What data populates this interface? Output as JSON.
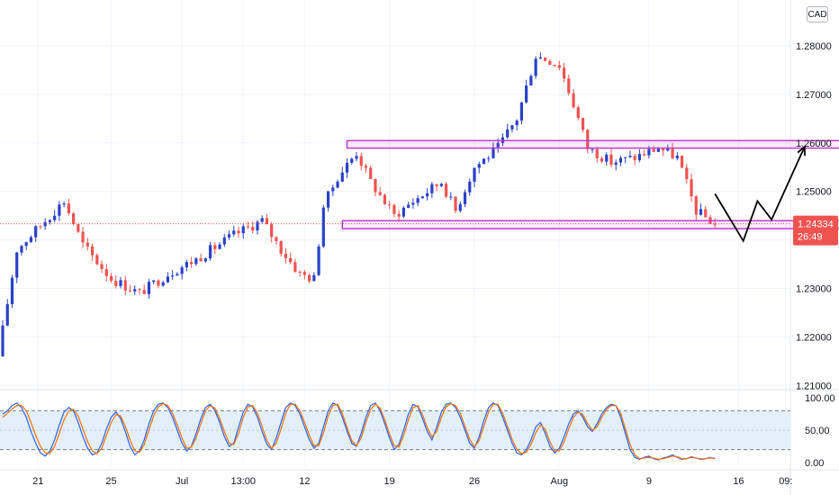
{
  "currency_badge": "CAD",
  "colors": {
    "up": "#2a41c8",
    "down": "#ef5350",
    "zone": "#c03ccf",
    "price_line": "#ef5350",
    "stoch_k": "#2962ff",
    "stoch_d": "#ff6d00",
    "stoch_band": "#e3f0fc",
    "axis_text": "#131722"
  },
  "current_price": {
    "value": 1.24334,
    "label": "1.24334",
    "countdown": "26:49"
  },
  "chart_data": [
    {
      "type": "candlestick",
      "title": "",
      "y_ticks": [
        "1.28000",
        "1.27000",
        "1.26000",
        "1.25000",
        "1.23000",
        "1.22000",
        "1.21000"
      ],
      "x_ticks": [
        "21",
        "25",
        "Jul",
        "13:00",
        "12",
        "19",
        "26",
        "Aug",
        "9",
        "16",
        "09:"
      ],
      "ylim": [
        1.206,
        1.292
      ],
      "candles_count": 152,
      "anchors": [
        [
          0,
          1.216
        ],
        [
          4,
          1.238
        ],
        [
          10,
          1.244
        ],
        [
          14,
          1.248
        ],
        [
          18,
          1.239
        ],
        [
          24,
          1.232
        ],
        [
          30,
          1.229
        ],
        [
          36,
          1.233
        ],
        [
          42,
          1.236
        ],
        [
          50,
          1.241
        ],
        [
          56,
          1.244
        ],
        [
          60,
          1.238
        ],
        [
          64,
          1.233
        ],
        [
          67,
          1.232
        ],
        [
          69,
          1.247
        ],
        [
          72,
          1.253
        ],
        [
          76,
          1.258
        ],
        [
          79,
          1.252
        ],
        [
          84,
          1.245
        ],
        [
          88,
          1.248
        ],
        [
          94,
          1.252
        ],
        [
          97,
          1.246
        ],
        [
          101,
          1.255
        ],
        [
          106,
          1.259
        ],
        [
          110,
          1.265
        ],
        [
          114,
          1.278
        ],
        [
          117,
          1.277
        ],
        [
          119,
          1.276
        ],
        [
          122,
          1.268
        ],
        [
          125,
          1.259
        ],
        [
          130,
          1.256
        ],
        [
          135,
          1.257
        ],
        [
          140,
          1.259
        ],
        [
          144,
          1.257
        ],
        [
          148,
          1.246
        ],
        [
          152,
          1.2433
        ]
      ],
      "zones": [
        {
          "name": "resistance",
          "y_low": 1.2593,
          "y_high": 1.2601,
          "x_from": 73,
          "x_to": 192
        },
        {
          "name": "support",
          "y_low": 1.2427,
          "y_high": 1.2436,
          "x_from": 72,
          "x_to": 180
        }
      ],
      "projection": [
        [
          151,
          1.2495
        ],
        [
          157,
          1.2398
        ],
        [
          160,
          1.248
        ],
        [
          163,
          1.2442
        ],
        [
          170,
          1.2592
        ]
      ]
    },
    {
      "type": "line",
      "title": "",
      "ylim": [
        0,
        100
      ],
      "y_ticks": [
        "100.00",
        "50.00",
        "0.00"
      ],
      "bands": [
        20,
        80
      ],
      "series": [
        {
          "role": "%K",
          "values": [
            75,
            80,
            88,
            92,
            85,
            70,
            48,
            30,
            15,
            10,
            18,
            35,
            58,
            78,
            85,
            80,
            62,
            40,
            22,
            12,
            15,
            30,
            52,
            70,
            78,
            68,
            48,
            25,
            12,
            18,
            35,
            60,
            80,
            90,
            92,
            85,
            70,
            50,
            30,
            18,
            25,
            45,
            68,
            85,
            90,
            80,
            62,
            40,
            25,
            30,
            55,
            78,
            90,
            86,
            70,
            48,
            28,
            20,
            38,
            62,
            85,
            92,
            88,
            75,
            55,
            35,
            22,
            30,
            55,
            80,
            92,
            88,
            70,
            48,
            30,
            25,
            45,
            70,
            88,
            92,
            80,
            60,
            38,
            20,
            28,
            50,
            75,
            90,
            86,
            68,
            48,
            35,
            55,
            78,
            90,
            92,
            85,
            70,
            50,
            30,
            22,
            40,
            65,
            85,
            92,
            88,
            70,
            50,
            30,
            15,
            12,
            20,
            35,
            55,
            62,
            45,
            25,
            15,
            22,
            40,
            60,
            75,
            80,
            70,
            55,
            48,
            60,
            75,
            85,
            90,
            88,
            70,
            45,
            20,
            8,
            5,
            8,
            10,
            6,
            4,
            7,
            9,
            12,
            8,
            5,
            6,
            9,
            7,
            5,
            6,
            8,
            6
          ]
        },
        {
          "role": "%D",
          "values": [
            70,
            76,
            83,
            88,
            88,
            80,
            62,
            42,
            25,
            15,
            14,
            25,
            45,
            66,
            80,
            82,
            72,
            52,
            32,
            18,
            14,
            22,
            42,
            62,
            74,
            72,
            56,
            35,
            18,
            16,
            28,
            50,
            72,
            86,
            91,
            88,
            76,
            58,
            38,
            22,
            24,
            38,
            60,
            80,
            88,
            84,
            68,
            48,
            30,
            28,
            45,
            70,
            86,
            88,
            76,
            56,
            34,
            22,
            30,
            52,
            76,
            90,
            90,
            80,
            62,
            42,
            26,
            26,
            46,
            72,
            88,
            90,
            76,
            54,
            34,
            26,
            38,
            62,
            82,
            90,
            84,
            66,
            44,
            26,
            24,
            42,
            66,
            85,
            88,
            74,
            54,
            40,
            48,
            70,
            86,
            91,
            88,
            76,
            56,
            36,
            24,
            34,
            56,
            78,
            90,
            90,
            76,
            56,
            36,
            20,
            14,
            16,
            28,
            46,
            58,
            52,
            32,
            18,
            18,
            32,
            52,
            70,
            78,
            74,
            60,
            50,
            55,
            70,
            82,
            88,
            88,
            76,
            52,
            28,
            12,
            6,
            7,
            8,
            7,
            5,
            6,
            8,
            10,
            9,
            6,
            6,
            8,
            7,
            6,
            6,
            7,
            7
          ]
        }
      ]
    }
  ]
}
